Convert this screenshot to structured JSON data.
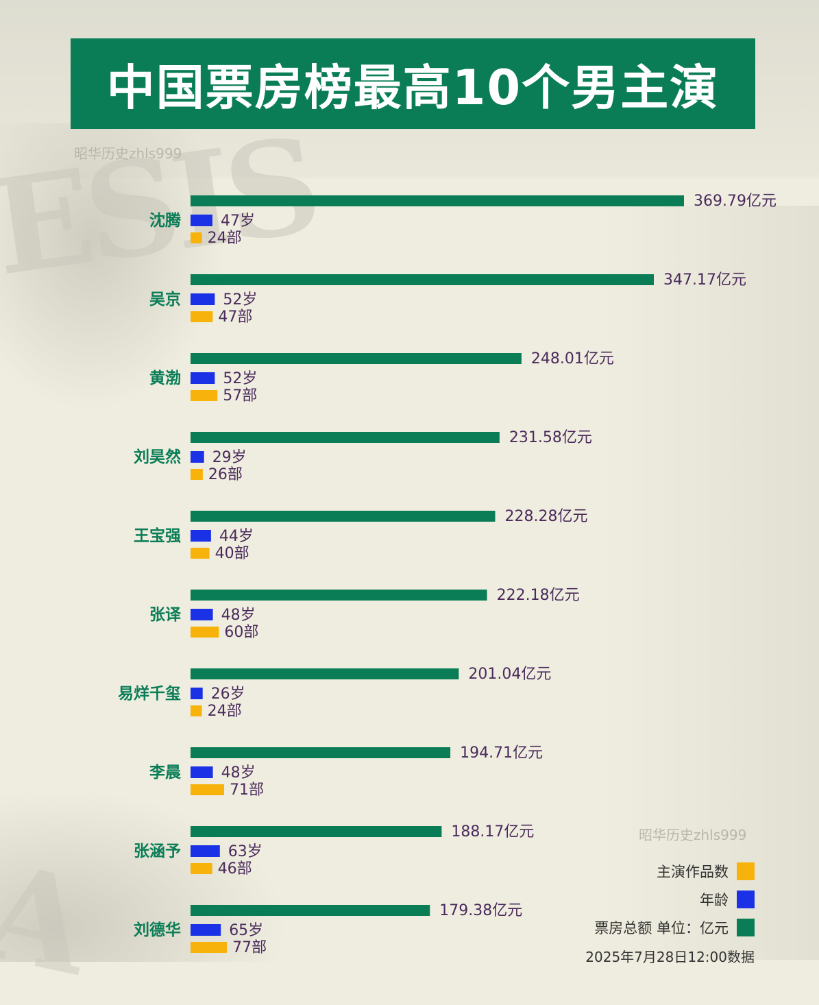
{
  "title": "中国票房榜最高10个男主演",
  "watermark": "昭华历史zhls999",
  "watermark_bottom": "昭华历史zhls999",
  "colors": {
    "box_office": "#0a7d57",
    "age": "#1a31e6",
    "works": "#f7b30c",
    "banner": "#0a7d57"
  },
  "legend": {
    "works": "主演作品数",
    "age": "年龄",
    "box_office": "票房总额 单位：亿元"
  },
  "note": "2025年7月28日12:00数据",
  "chart_data": {
    "type": "bar",
    "orientation": "horizontal",
    "categories": [
      "沈腾",
      "吴京",
      "黄渤",
      "刘昊然",
      "王宝强",
      "张译",
      "易烊千玺",
      "李晨",
      "张涵予",
      "刘德华"
    ],
    "series": [
      {
        "name": "票房总额 单位：亿元",
        "key": "box_office",
        "values": [
          369.79,
          347.17,
          248.01,
          231.58,
          228.28,
          222.18,
          201.04,
          194.71,
          188.17,
          179.38
        ],
        "labels": [
          "369.79亿元",
          "347.17亿元",
          "248.01亿元",
          "231.58亿元",
          "228.28亿元",
          "222.18亿元",
          "201.04亿元",
          "194.71亿元",
          "188.17亿元",
          "179.38亿元"
        ]
      },
      {
        "name": "年龄",
        "key": "age",
        "values": [
          47,
          52,
          52,
          29,
          44,
          48,
          26,
          48,
          63,
          65
        ],
        "labels": [
          "47岁",
          "52岁",
          "52岁",
          "29岁",
          "44岁",
          "48岁",
          "26岁",
          "48岁",
          "63岁",
          "65岁"
        ]
      },
      {
        "name": "主演作品数",
        "key": "works",
        "values": [
          24,
          47,
          57,
          26,
          40,
          60,
          24,
          71,
          46,
          77
        ],
        "labels": [
          "24部",
          "47部",
          "57部",
          "26部",
          "40部",
          "60部",
          "24部",
          "71部",
          "46部",
          "77部"
        ]
      }
    ],
    "legend_position": "bottom-right",
    "grid": false
  }
}
